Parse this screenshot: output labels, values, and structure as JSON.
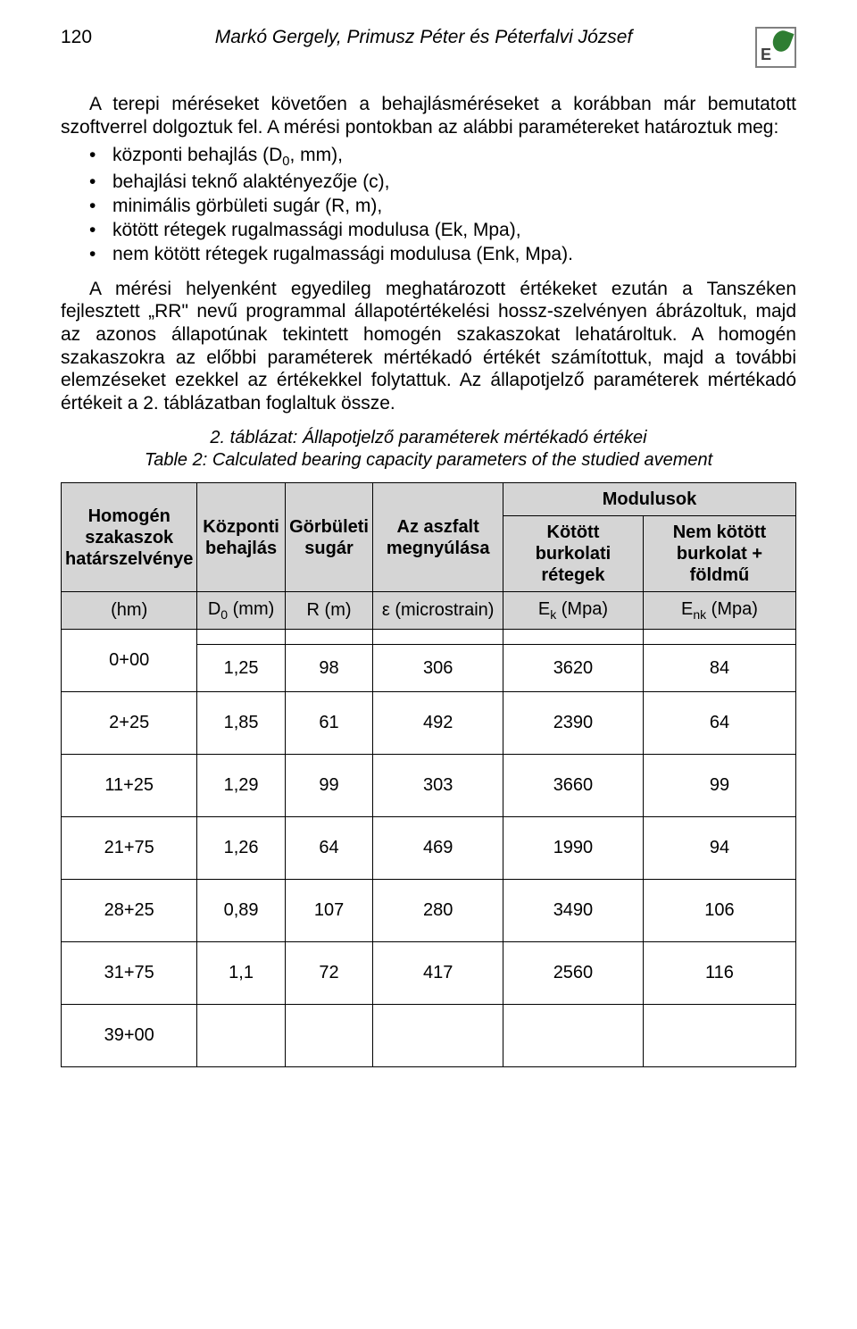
{
  "page_number": "120",
  "authors": "Markó Gergely, Primusz Péter és Péterfalvi József",
  "para_intro": "A terepi méréseket követően a behajlásméréseket a korábban már bemutatott szoftverrel dolgoztuk fel. A mérési pontokban az alábbi paramétereket határoztuk meg:",
  "bullet1": "központi behajlás (D",
  "bullet1_sub": "0",
  "bullet1_tail": ", mm),",
  "bullet2": "behajlási teknő alaktényezője (c),",
  "bullet3": "minimális görbületi sugár (R, m),",
  "bullet4": "kötött rétegek rugalmassági modulusa (Ek, Mpa),",
  "bullet5": "nem kötött rétegek rugalmassági modulusa (Enk, Mpa).",
  "para_body": "A mérési helyenként egyedileg meghatározott értékeket ezután a Tanszéken fejlesztett „RR\" nevű programmal állapotértékelési hossz-szelvényen ábrázoltuk, majd az azonos állapotúnak tekintett homogén szakaszokat lehatároltuk. A homogén szakaszokra az előbbi paraméterek mértékadó értékét számítottuk, majd a további elemzéseket ezekkel az értékekkel folytattuk. Az állapotjelző paraméterek mértékadó értékeit a 2. táblázatban foglaltuk össze.",
  "table_caption_line1": "2. táblázat: Állapotjelző paraméterek mértékadó értékei",
  "table_caption_line2": "Table 2: Calculated bearing capacity parameters of the studied avement",
  "headers": {
    "seg": "Homogén szakaszok határszelvénye",
    "d0": "Központi behajlás",
    "r": "Görbületi sugár",
    "eps": "Az aszfalt megnyúlása",
    "mod": "Modulusok",
    "ek": "Kötött burkolati rétegek",
    "enk": "Nem kötött burkolat + földmű",
    "u_hm": "(hm)",
    "u_d0_a": "D",
    "u_d0_sub": "0",
    "u_d0_b": " (mm)",
    "u_r": "R (m)",
    "u_eps": "ε  (microstrain)",
    "u_ek_a": "E",
    "u_ek_sub": "k",
    "u_ek_b": " (Mpa)",
    "u_enk_a": "E",
    "u_enk_sub": "nk",
    "u_enk_b": " (Mpa)"
  },
  "segments": [
    "0+00",
    "2+25",
    "11+25",
    "21+75",
    "28+25",
    "31+75",
    "39+00"
  ],
  "rows": [
    {
      "d0": "1,25",
      "r": "98",
      "eps": "306",
      "ek": "3620",
      "enk": "84"
    },
    {
      "d0": "1,85",
      "r": "61",
      "eps": "492",
      "ek": "2390",
      "enk": "64"
    },
    {
      "d0": "1,29",
      "r": "99",
      "eps": "303",
      "ek": "3660",
      "enk": "99"
    },
    {
      "d0": "1,26",
      "r": "64",
      "eps": "469",
      "ek": "1990",
      "enk": "94"
    },
    {
      "d0": "0,89",
      "r": "107",
      "eps": "280",
      "ek": "3490",
      "enk": "106"
    },
    {
      "d0": "1,1",
      "r": "72",
      "eps": "417",
      "ek": "2560",
      "enk": "116"
    }
  ],
  "colors": {
    "header_bg": "#d5d5d5",
    "border": "#000000",
    "text": "#000000",
    "leaf": "#2e7d32"
  }
}
